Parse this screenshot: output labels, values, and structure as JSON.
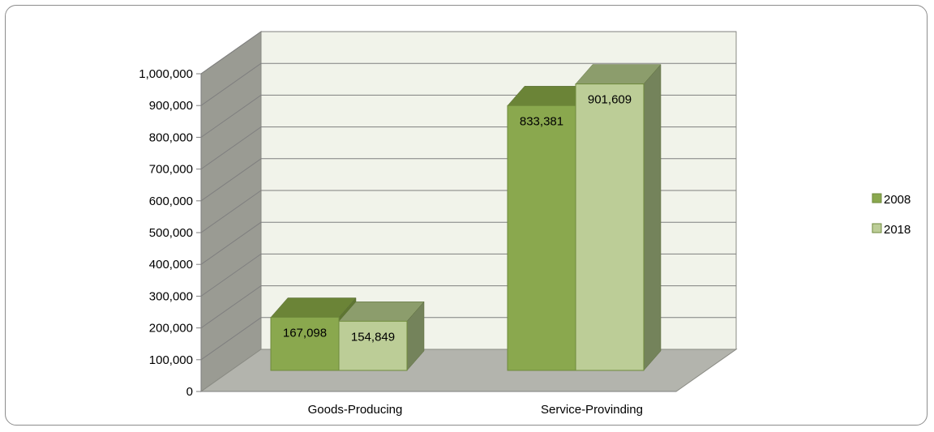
{
  "chart_data": {
    "type": "bar",
    "categories": [
      "Goods-Producing",
      "Service-Provinding"
    ],
    "series": [
      {
        "name": "2008",
        "values": [
          167098,
          833381
        ],
        "labels": [
          "167,098",
          "833,381"
        ]
      },
      {
        "name": "2018",
        "values": [
          154849,
          901609
        ],
        "labels": [
          "154,849",
          "901,609"
        ]
      }
    ],
    "ylim": [
      0,
      1000000
    ],
    "yticks": [
      0,
      100000,
      200000,
      300000,
      400000,
      500000,
      600000,
      700000,
      800000,
      900000,
      1000000
    ],
    "ytick_labels": [
      "0",
      "100,000",
      "200,000",
      "300,000",
      "400,000",
      "500,000",
      "600,000",
      "700,000",
      "800,000",
      "900,000",
      "1,000,000"
    ],
    "title": "",
    "xlabel": "",
    "ylabel": "",
    "grid": true,
    "legend_position": "right",
    "colors": {
      "2008": {
        "front": "#8aa84e",
        "top": "#6b8437",
        "side": "#5e7631"
      },
      "2018": {
        "front": "#bccd97",
        "top": "#8c9d6c",
        "side": "#74835b"
      },
      "back_wall": "#f1f3ea",
      "side_wall": "#9a9b93",
      "floor": "#b3b4ad",
      "gridline": "#7f7f7f"
    }
  }
}
